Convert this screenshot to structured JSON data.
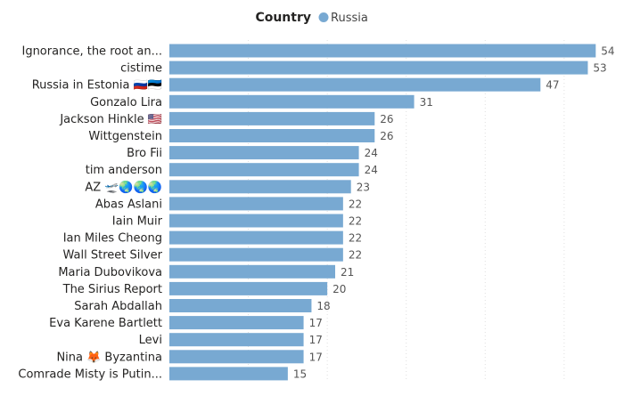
{
  "legend": {
    "title": "Country",
    "entries": [
      {
        "name": "Russia",
        "color": "#78a9d2"
      }
    ]
  },
  "colors": {
    "bar": "#78a9d2",
    "label_on_bar": "#ffffff",
    "label_outside": "#555555",
    "category_text": "#252423",
    "gridline": "#e0e0e0"
  },
  "chart_data": {
    "type": "bar",
    "orientation": "horizontal",
    "title": "",
    "xlabel": "",
    "ylabel": "",
    "xlim": [
      0,
      56
    ],
    "grid": true,
    "legend_position": "top-center",
    "categories": [
      "Ignorance, the root an...",
      "cistime",
      "Russia in Estonia 🇷🇺🇪🇪",
      "Gonzalo Lira",
      "Jackson Hinkle 🇺🇸",
      "Wittgenstein",
      "Bro Fii",
      "tim anderson",
      "AZ 🛫🌏🌏🌏",
      "Abas Aslani",
      "Iain Muir",
      "Ian Miles Cheong",
      "Wall Street Silver",
      "Maria Dubovikova",
      "The Sirius Report",
      "Sarah Abdallah",
      "Eva Karene Bartlett",
      "Levi",
      "Nina 🦊 Byzantina",
      "Comrade Misty is Putin..."
    ],
    "series": [
      {
        "name": "Russia",
        "values": [
          54,
          53,
          47,
          31,
          26,
          26,
          24,
          24,
          23,
          22,
          22,
          22,
          22,
          21,
          20,
          18,
          17,
          17,
          17,
          15
        ]
      }
    ]
  }
}
